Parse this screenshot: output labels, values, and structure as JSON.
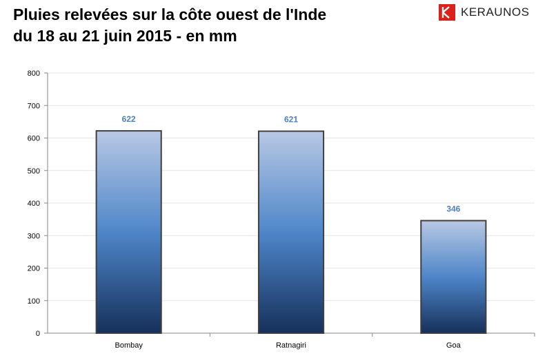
{
  "title_line1": "Pluies relevées sur la côte ouest de l'Inde",
  "title_line2": "du 18 au 21 juin 2015 - en mm",
  "brand": {
    "name": "KERAUNOS",
    "icon": "keraunos-logo-icon",
    "color": "#d9221c"
  },
  "chart_data": {
    "type": "bar",
    "categories": [
      "Bombay",
      "Ratnagiri",
      "Goa"
    ],
    "values": [
      622,
      621,
      346
    ],
    "data_labels": [
      "622",
      "621",
      "346"
    ],
    "xlabel": "",
    "ylabel": "",
    "ylim": [
      0,
      800
    ],
    "yticks": [
      0,
      100,
      200,
      300,
      400,
      500,
      600,
      700,
      800
    ],
    "grid": true,
    "legend": "none",
    "colors": {
      "bar_top": "#b8c8e4",
      "bar_mid": "#4f86c9",
      "bar_bottom": "#16305a",
      "bar_border": "#3f3f3f",
      "data_label": "#4f81bd",
      "gridline": "#e6e6e6",
      "axis": "#868686"
    }
  }
}
